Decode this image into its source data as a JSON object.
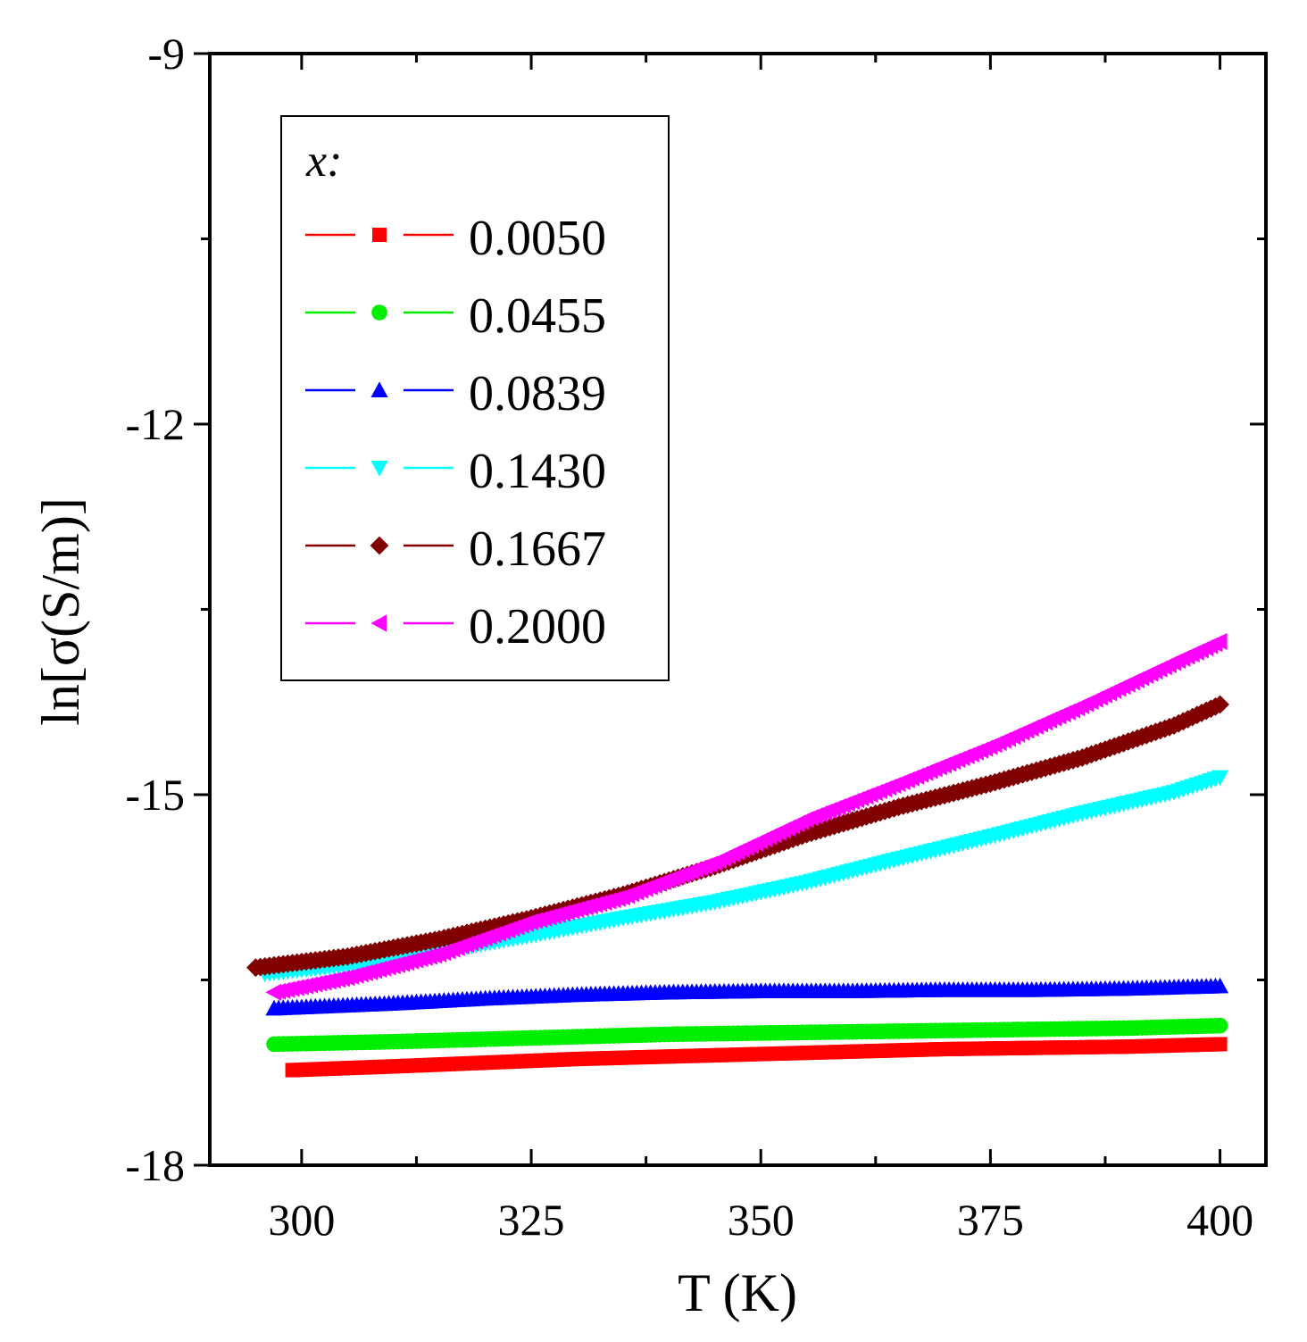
{
  "chart_data": {
    "type": "scatter",
    "title": "",
    "xlabel": "T  (K)",
    "ylabel": "ln[σ(S/m)]",
    "xlim": [
      290,
      405
    ],
    "ylim": [
      -18,
      -9
    ],
    "xticks": [
      "300",
      "325",
      "350",
      "375",
      "400"
    ],
    "yticks": [
      "-9",
      "-12",
      "-15",
      "-18"
    ],
    "legend": {
      "title": "x:",
      "position": "top-left"
    },
    "series": [
      {
        "name": "0.0050",
        "color": "#ff0000",
        "marker": "square",
        "x": [
          299,
          310,
          320,
          330,
          340,
          350,
          360,
          370,
          380,
          390,
          400
        ],
        "y": [
          -17.23,
          -17.2,
          -17.17,
          -17.14,
          -17.12,
          -17.1,
          -17.08,
          -17.06,
          -17.05,
          -17.04,
          -17.02
        ]
      },
      {
        "name": "0.0455",
        "color": "#00ee00",
        "marker": "circle",
        "x": [
          297,
          310,
          320,
          330,
          340,
          350,
          360,
          370,
          380,
          390,
          400
        ],
        "y": [
          -17.02,
          -17.0,
          -16.98,
          -16.96,
          -16.94,
          -16.93,
          -16.92,
          -16.91,
          -16.9,
          -16.89,
          -16.87
        ]
      },
      {
        "name": "0.0839",
        "color": "#0000ff",
        "marker": "triangle-up",
        "x": [
          297,
          310,
          320,
          330,
          340,
          350,
          360,
          370,
          380,
          390,
          400
        ],
        "y": [
          -16.73,
          -16.69,
          -16.65,
          -16.62,
          -16.6,
          -16.59,
          -16.59,
          -16.58,
          -16.58,
          -16.57,
          -16.55
        ]
      },
      {
        "name": "0.1430",
        "color": "#00ffff",
        "marker": "triangle-down",
        "x": [
          296,
          305,
          315,
          325,
          335,
          345,
          355,
          365,
          375,
          385,
          395,
          400
        ],
        "y": [
          -16.45,
          -16.38,
          -16.27,
          -16.14,
          -16.0,
          -15.87,
          -15.71,
          -15.52,
          -15.34,
          -15.15,
          -14.98,
          -14.86
        ]
      },
      {
        "name": "0.1667",
        "color": "#800000",
        "marker": "diamond",
        "x": [
          295,
          305,
          315,
          325,
          335,
          345,
          355,
          365,
          375,
          385,
          395,
          400
        ],
        "y": [
          -16.4,
          -16.31,
          -16.17,
          -16.0,
          -15.81,
          -15.58,
          -15.32,
          -15.1,
          -14.91,
          -14.7,
          -14.44,
          -14.27
        ]
      },
      {
        "name": "0.2000",
        "color": "#ff00ff",
        "marker": "triangle-left",
        "x": [
          297,
          305,
          315,
          325,
          335,
          345,
          355,
          365,
          375,
          385,
          395,
          400
        ],
        "y": [
          -16.6,
          -16.48,
          -16.29,
          -16.03,
          -15.83,
          -15.55,
          -15.2,
          -14.91,
          -14.61,
          -14.28,
          -13.93,
          -13.76
        ]
      }
    ]
  }
}
